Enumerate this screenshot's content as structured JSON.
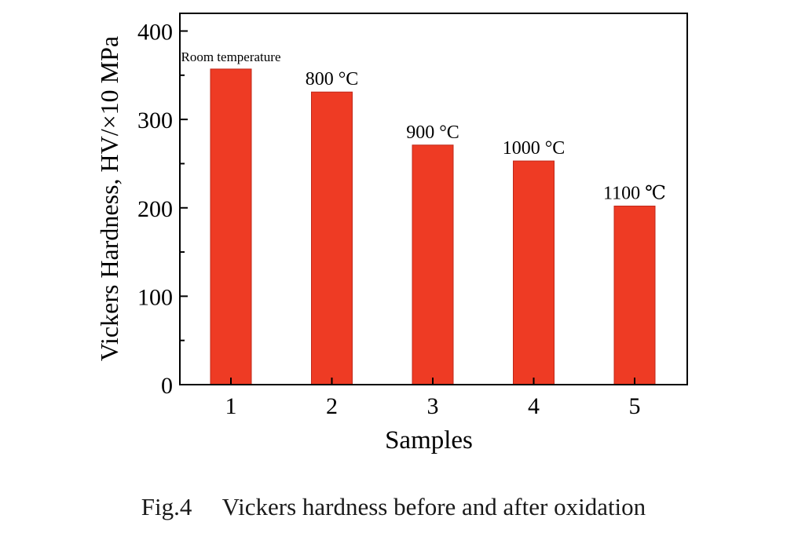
{
  "chart_data": {
    "type": "bar",
    "categories": [
      "1",
      "2",
      "3",
      "4",
      "5"
    ],
    "values": [
      357,
      331,
      271,
      253,
      202
    ],
    "data_labels": [
      "Room temperature",
      "800 °C",
      "900 °C",
      "1000 °C",
      "1100 ℃"
    ],
    "xlabel": "Samples",
    "ylabel": "Vickers Hardness, HV/×10 MPa",
    "ylim": [
      0,
      420
    ],
    "yticks": [
      0,
      100,
      200,
      300,
      400
    ],
    "bar_color": "#ee3b24",
    "grid": false
  },
  "caption": {
    "figure_number": "Fig.4",
    "text": "Vickers hardness before and after oxidation"
  }
}
